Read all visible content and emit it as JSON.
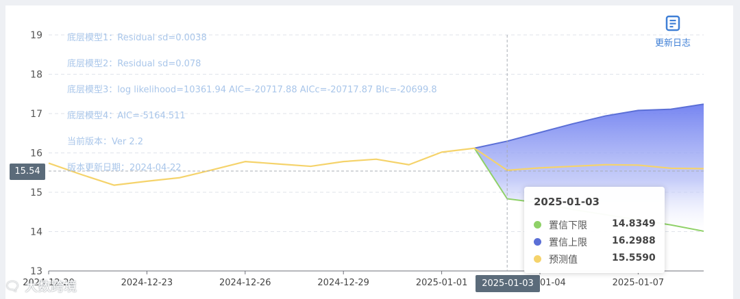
{
  "chart_data": {
    "type": "line",
    "title": "",
    "xlabel": "",
    "ylabel": "",
    "ylim": [
      13,
      19
    ],
    "y_ticks": [
      "13",
      "14",
      "15",
      "16",
      "17",
      "18",
      "19"
    ],
    "x_tick_labels": [
      "2024-12-20",
      "2024-12-23",
      "2024-12-26",
      "2024-12-29",
      "2025-01-01",
      "2025-01-04",
      "2025-01-07"
    ],
    "grid": true,
    "x": [
      "2024-12-20",
      "2024-12-21",
      "2024-12-22",
      "2024-12-23",
      "2024-12-24",
      "2024-12-25",
      "2024-12-26",
      "2024-12-27",
      "2024-12-28",
      "2024-12-29",
      "2024-12-30",
      "2024-12-31",
      "2025-01-01",
      "2025-01-02",
      "2025-01-03",
      "2025-01-04",
      "2025-01-05",
      "2025-01-06",
      "2025-01-07",
      "2025-01-08",
      "2025-01-09"
    ],
    "series": [
      {
        "name": "预测值",
        "color": "#f5d36b",
        "values": [
          15.74,
          15.45,
          15.18,
          15.28,
          15.37,
          15.57,
          15.78,
          15.72,
          15.66,
          15.78,
          15.84,
          15.7,
          16.02,
          16.12,
          15.559,
          15.62,
          15.66,
          15.7,
          15.69,
          15.61,
          15.6
        ]
      },
      {
        "name": "置信上限",
        "color": "#5b6fd6",
        "values": [
          null,
          null,
          null,
          null,
          null,
          null,
          null,
          null,
          null,
          null,
          null,
          null,
          null,
          16.12,
          16.2988,
          16.52,
          16.74,
          16.94,
          17.08,
          17.11,
          17.24
        ]
      },
      {
        "name": "置信下限",
        "color": "#8fd168",
        "values": [
          null,
          null,
          null,
          null,
          null,
          null,
          null,
          null,
          null,
          null,
          null,
          null,
          null,
          16.12,
          14.8349,
          14.73,
          14.56,
          14.43,
          14.3,
          14.17,
          14.01
        ]
      }
    ],
    "crosshair": {
      "y_value": "15.54",
      "x_value": "2025-01-03"
    },
    "tooltip": {
      "date": "2025-01-03",
      "rows": [
        {
          "name": "置信下限",
          "value": "14.8349",
          "color": "#8fd168"
        },
        {
          "name": "置信上限",
          "value": "16.2988",
          "color": "#5b6fd6"
        },
        {
          "name": "预测值",
          "value": "15.5590",
          "color": "#f5d36b"
        }
      ]
    }
  },
  "notes": [
    "底层模型1：Residual sd=0.0038",
    "底层模型2：Residual sd=0.078",
    "底层模型3：log likelihood=10361.94 AIC=-20717.88 AICc=-20717.87 BIc=-20699.8",
    "底层模型4：AIC=-5164.511",
    "当前版本：Ver 2.2",
    "版本更新日期：2024-04-22"
  ],
  "changelog": {
    "label": "更新日志",
    "icon": "document-icon"
  },
  "watermark": "大数跨境"
}
